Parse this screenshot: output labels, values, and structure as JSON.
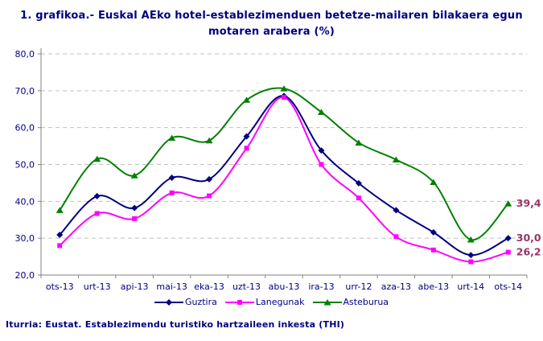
{
  "title": {
    "line1": "1. grafikoa.- Euskal AEko hotel-establezimenduen betetze-mailaren bilakaera egun",
    "line2": "motaren arabera (%)"
  },
  "footer": {
    "source": "Iturria: Eustat. Establezimendu turistiko hartzaileen inkesta (THI)"
  },
  "colors": {
    "title_text": "#000080",
    "axis_text": "#000080",
    "legend_text": "#000080",
    "end_label_text": "#993366",
    "gridline": "#c0c0c0",
    "axis_line": "#808080",
    "background": "#ffffff"
  },
  "chart_data": {
    "type": "line",
    "title": "1. grafikoa.- Euskal AEko hotel-establezimenduen betetze-mailaren bilakaera egun motaren arabera (%)",
    "xlabel": "",
    "ylabel": "",
    "ylim": [
      20,
      80
    ],
    "grid": "horizontal-dashed",
    "legend_position": "bottom",
    "smooth_lines": true,
    "y_ticks": [
      {
        "value": 80,
        "label": "80,0"
      },
      {
        "value": 70,
        "label": "70,0"
      },
      {
        "value": 60,
        "label": "60,0"
      },
      {
        "value": 50,
        "label": "50,0"
      },
      {
        "value": 40,
        "label": "40,0"
      },
      {
        "value": 30,
        "label": "30,0"
      },
      {
        "value": 20,
        "label": "20,0"
      }
    ],
    "categories": [
      "ots-13",
      "urt-13",
      "api-13",
      "mai-13",
      "eka-13",
      "uzt-13",
      "abu-13",
      "ira-13",
      "urr-12",
      "aza-13",
      "abe-13",
      "urt-14",
      "ots-14"
    ],
    "series": [
      {
        "id": "guztira",
        "name": "Guztira",
        "color": "#000080",
        "marker": "diamond",
        "values": [
          30.9,
          41.4,
          38.2,
          46.4,
          46.0,
          57.6,
          68.6,
          53.8,
          44.9,
          37.6,
          31.6,
          25.4,
          30.0
        ],
        "end_label": "30,0"
      },
      {
        "id": "lanegunak",
        "name": "Lanegunak",
        "color": "#ff00ff",
        "marker": "square",
        "values": [
          28.0,
          36.7,
          35.3,
          42.3,
          41.5,
          54.4,
          68.2,
          50.0,
          40.9,
          30.4,
          26.8,
          23.6,
          26.2
        ],
        "end_label": "26,2"
      },
      {
        "id": "asteburua",
        "name": "Asteburua",
        "color": "#008000",
        "marker": "triangle",
        "values": [
          37.6,
          51.5,
          47.0,
          57.2,
          56.5,
          67.5,
          70.6,
          64.2,
          55.9,
          51.3,
          45.2,
          29.6,
          39.4
        ],
        "end_label": "39,4"
      }
    ]
  }
}
